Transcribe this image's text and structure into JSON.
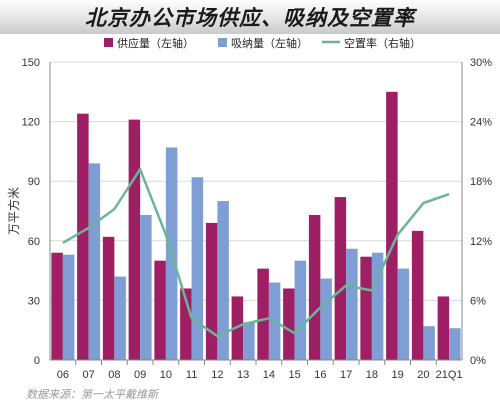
{
  "chart_data": {
    "type": "bar",
    "title": "北京办公市场供应、吸纳及空置率",
    "categories": [
      "06",
      "07",
      "08",
      "09",
      "10",
      "11",
      "12",
      "13",
      "14",
      "15",
      "16",
      "17",
      "18",
      "19",
      "20",
      "21Q1"
    ],
    "series": [
      {
        "name": "供应量（左轴）",
        "kind": "bar",
        "axis": "left",
        "color": "#9e1f63",
        "values": [
          54,
          124,
          62,
          121,
          50,
          36,
          69,
          32,
          46,
          36,
          73,
          82,
          52,
          135,
          65,
          32
        ]
      },
      {
        "name": "吸纳量（左轴）",
        "kind": "bar",
        "axis": "left",
        "color": "#7f9fd4",
        "values": [
          53,
          99,
          42,
          73,
          107,
          92,
          80,
          19,
          39,
          50,
          41,
          56,
          54,
          46,
          17,
          16
        ]
      },
      {
        "name": "空置率（右轴）",
        "kind": "line",
        "axis": "right",
        "color": "#6ab59a",
        "values": [
          11.8,
          13.3,
          15.2,
          19.2,
          12.6,
          4.2,
          2.4,
          3.6,
          4.2,
          2.7,
          5.3,
          7.5,
          7.0,
          12.6,
          15.8,
          16.7
        ]
      }
    ],
    "ylabel": "万平方米",
    "ylim": [
      0,
      150
    ],
    "yticks": [
      "0",
      "30",
      "60",
      "90",
      "120",
      "150"
    ],
    "y2lim": [
      0,
      30
    ],
    "y2ticks": [
      "0%",
      "6%",
      "12%",
      "18%",
      "24%",
      "30%"
    ],
    "grid": true,
    "legend": "top"
  },
  "source_note": "数据来源：第一太平戴维斯"
}
